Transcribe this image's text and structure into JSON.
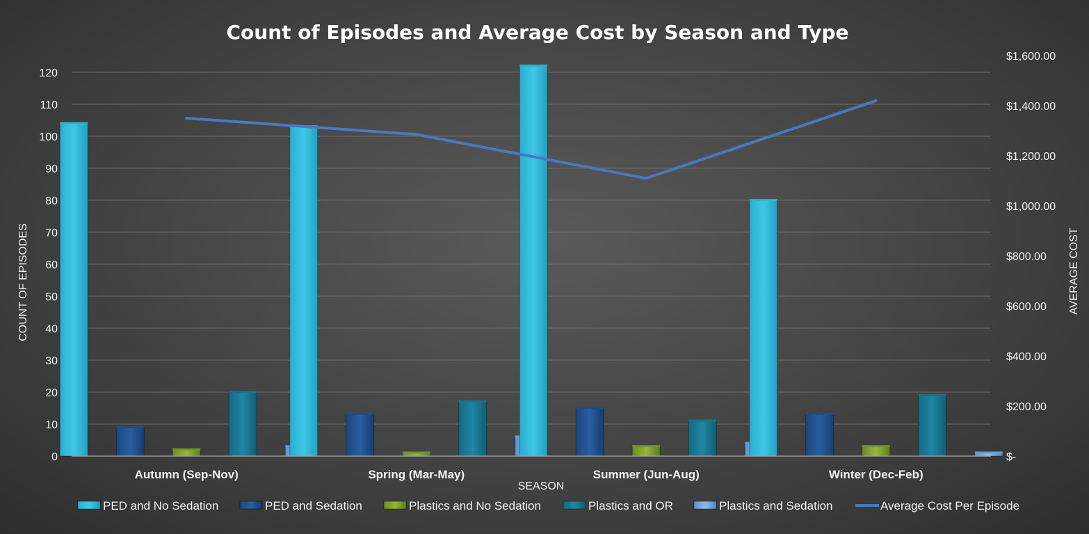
{
  "chart_data": {
    "type": "bar",
    "title": "Count of Episodes and Average Cost by Season and Type",
    "xlabel": "SEASON",
    "ylabel": "COUNT OF EPISODES",
    "y2label": "AVERAGE COST",
    "categories": [
      "Autumn (Sep-Nov)",
      "Spring (Mar-May)",
      "Summer (Jun-Aug)",
      "Winter (Dec-Feb)"
    ],
    "ylim": [
      0,
      120
    ],
    "yticks": [
      "0",
      "10",
      "20",
      "30",
      "40",
      "50",
      "60",
      "70",
      "80",
      "90",
      "100",
      "110",
      "120"
    ],
    "y2lim": [
      0,
      1600
    ],
    "y2ticks": [
      "$-",
      "$200.00",
      "$400.00",
      "$600.00",
      "$800.00",
      "$1,000.00",
      "$1,200.00",
      "$1,400.00",
      "$1,600.00"
    ],
    "grid": true,
    "legend_position": "bottom",
    "series": [
      {
        "name": "PED and No Sedation",
        "type": "bar",
        "color": "#2fb9dc",
        "values": [
          104,
          103,
          122,
          80
        ]
      },
      {
        "name": "PED and Sedation",
        "type": "bar",
        "color": "#1f4f8a",
        "values": [
          9,
          13,
          15,
          13
        ]
      },
      {
        "name": "Plastics and No Sedation",
        "type": "bar",
        "color": "#7a9a2a",
        "values": [
          2,
          1,
          3,
          3
        ]
      },
      {
        "name": "Plastics and OR",
        "type": "bar",
        "color": "#1a7590",
        "values": [
          20,
          17,
          11,
          19
        ]
      },
      {
        "name": "Plastics and Sedation",
        "type": "bar",
        "color": "#6aa2e0",
        "values": [
          3,
          6,
          4,
          1
        ]
      },
      {
        "name": "Average Cost Per Episode",
        "type": "line",
        "axis": "right",
        "color": "#4a78c0",
        "values": [
          1350,
          1285,
          1110,
          1420
        ]
      }
    ]
  }
}
